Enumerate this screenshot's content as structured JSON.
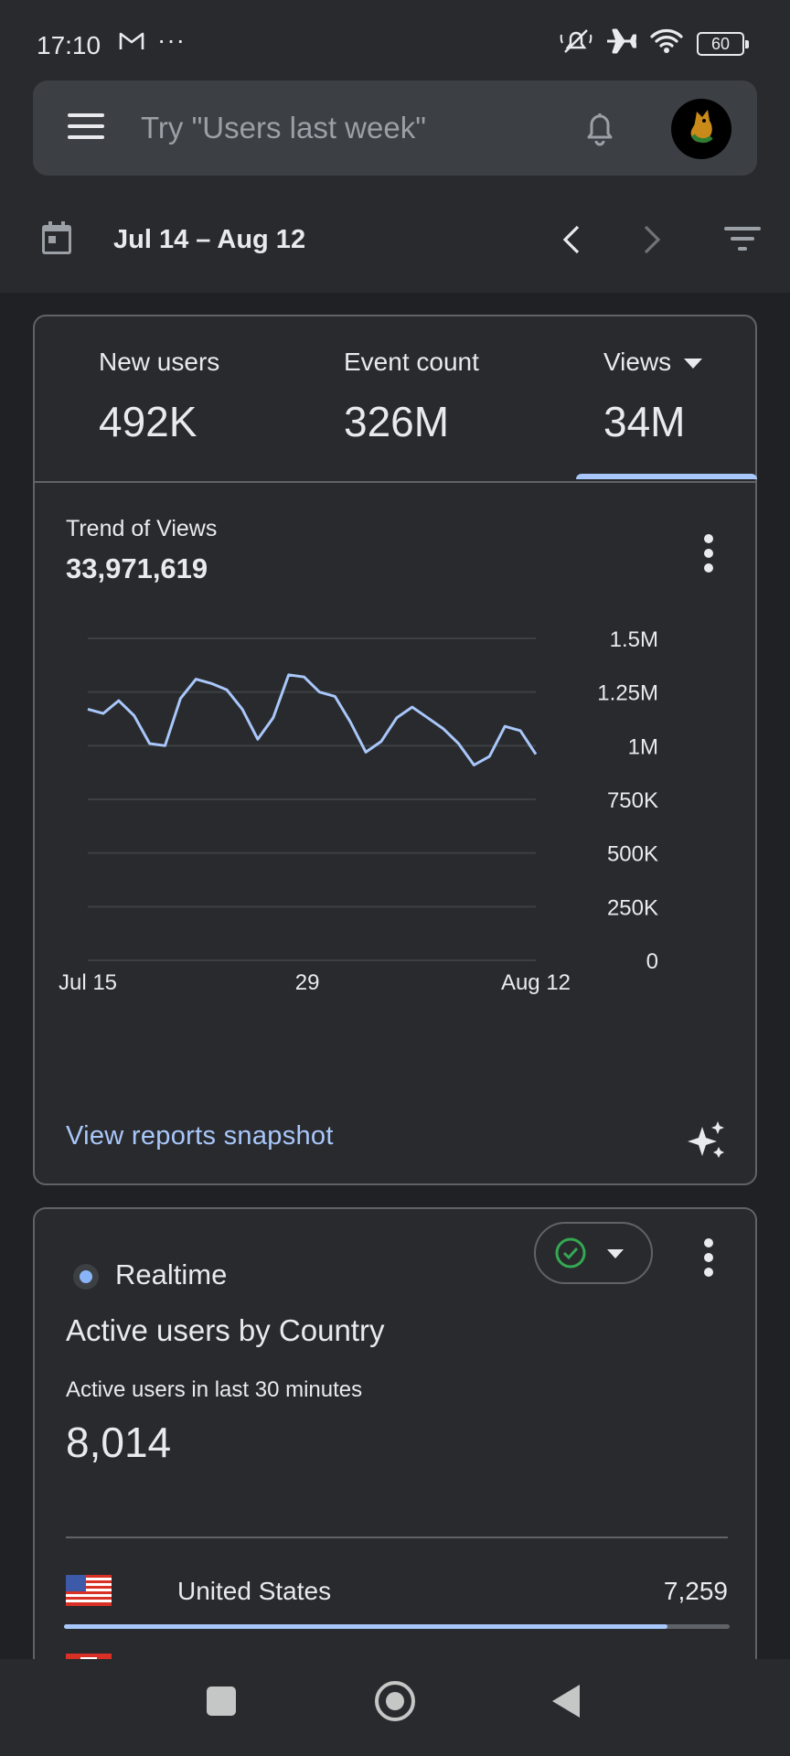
{
  "status_bar": {
    "time": "17:10",
    "dots": "···",
    "battery": "60"
  },
  "search": {
    "placeholder": "Try \"Users last week\""
  },
  "date_range": "Jul 14 – Aug 12",
  "metrics": [
    {
      "label": "New users",
      "value": "492K"
    },
    {
      "label": "Event count",
      "value": "326M"
    },
    {
      "label": "Views",
      "value": "34M"
    }
  ],
  "trend": {
    "title": "Trend of Views",
    "value": "33,971,619"
  },
  "chart_data": {
    "type": "line",
    "title": "Trend of Views",
    "x_tick_labels": [
      "Jul 15",
      "29",
      "Aug 12"
    ],
    "y_tick_labels": [
      "1.5M",
      "1.25M",
      "1M",
      "750K",
      "500K",
      "250K",
      "0"
    ],
    "ylim": [
      0,
      1500000
    ],
    "grid": true,
    "series": [
      {
        "values": [
          1170000,
          1150000,
          1210000,
          1140000,
          1010000,
          1000000,
          1220000,
          1310000,
          1290000,
          1260000,
          1170000,
          1030000,
          1130000,
          1330000,
          1320000,
          1250000,
          1230000,
          1110000,
          970000,
          1020000,
          1130000,
          1180000,
          1130000,
          1080000,
          1010000,
          910000,
          950000,
          1090000,
          1070000,
          960000
        ]
      }
    ]
  },
  "snapshot_link": "View reports snapshot",
  "realtime": {
    "label": "Realtime",
    "title": "Active users by Country",
    "subtitle": "Active users in last 30 minutes",
    "value": "8,014",
    "rows": [
      {
        "country": "United States",
        "value": "7,259",
        "share": 0.906
      }
    ]
  },
  "colors": {
    "accent": "#a8c7fa",
    "line": "#a8c7fa",
    "background": "#292a2d",
    "ok_green": "#34a853"
  }
}
